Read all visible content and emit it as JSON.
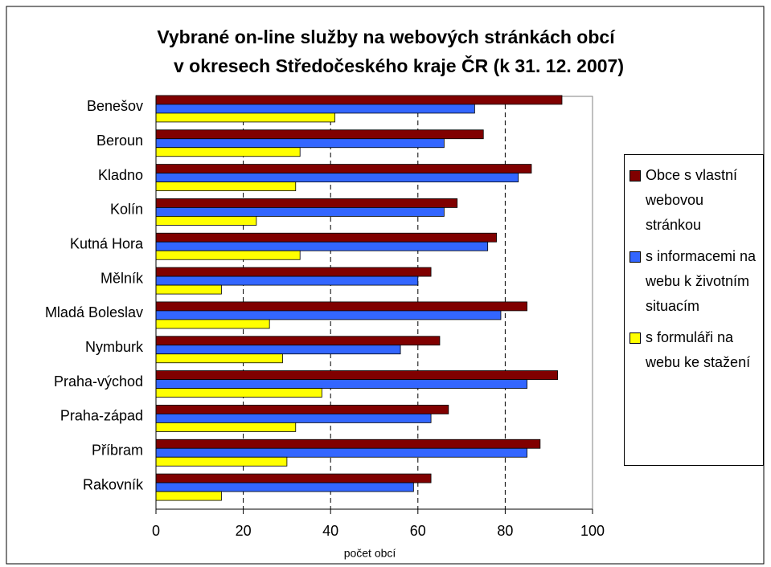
{
  "chart_data": {
    "type": "barh",
    "title": [
      "Vybrané on-line služby na webových stránkách obcí",
      "v okresech Středočeského kraje ČR (k 31. 12. 2007)"
    ],
    "x_label": "počet obcí",
    "categories": [
      "Benešov",
      "Beroun",
      "Kladno",
      "Kolín",
      "Kutná Hora",
      "Mělník",
      "Mladá Boleslav",
      "Nymburk",
      "Praha-východ",
      "Praha-západ",
      "Příbram",
      "Rakovník"
    ],
    "series": [
      {
        "name": "Obce s vlastní webovou stránkou",
        "color": "#800000",
        "values": [
          93,
          75,
          86,
          69,
          78,
          63,
          85,
          65,
          92,
          67,
          88,
          63
        ]
      },
      {
        "name": "s informacemi na webu k životním situacím",
        "color": "#3366ff",
        "values": [
          73,
          66,
          83,
          66,
          76,
          60,
          79,
          56,
          85,
          63,
          85,
          59
        ]
      },
      {
        "name": "s formuláři na webu ke stažení",
        "color": "#ffff00",
        "values": [
          41,
          33,
          32,
          23,
          33,
          15,
          26,
          29,
          38,
          32,
          30,
          15
        ]
      }
    ],
    "xlim": [
      0,
      100
    ],
    "xticks": [
      0,
      20,
      40,
      60,
      80,
      100
    ],
    "grid": true,
    "legend": "right"
  }
}
